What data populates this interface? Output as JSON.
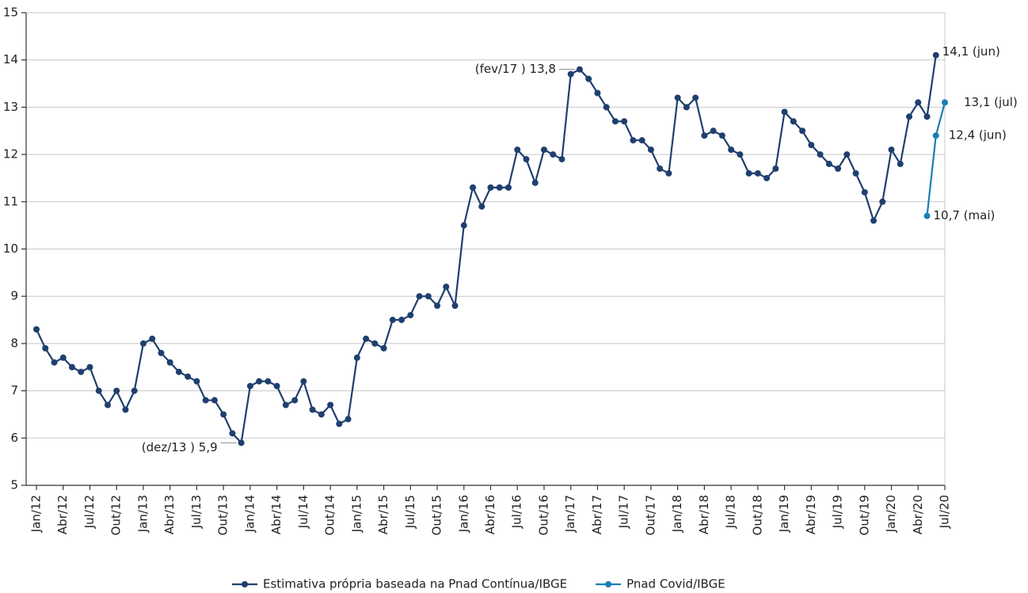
{
  "chart_data": {
    "type": "line",
    "categories": [
      "Jan/12",
      null,
      null,
      "Abr/12",
      null,
      null,
      "Jul/12",
      null,
      null,
      "Out/12",
      null,
      null,
      "Jan/13",
      null,
      null,
      "Abr/13",
      null,
      null,
      "Jul/13",
      null,
      null,
      "Out/13",
      null,
      null,
      "Jan/14",
      null,
      null,
      "Abr/14",
      null,
      null,
      "Jul/14",
      null,
      null,
      "Out/14",
      null,
      null,
      "Jan/15",
      null,
      null,
      "Abr/15",
      null,
      null,
      "Jul/15",
      null,
      null,
      "Out/15",
      null,
      null,
      "Jan/16",
      null,
      null,
      "Abr/16",
      null,
      null,
      "Jul/16",
      null,
      null,
      "Out/16",
      null,
      null,
      "Jan/17",
      null,
      null,
      "Abr/17",
      null,
      null,
      "Jul/17",
      null,
      null,
      "Out/17",
      null,
      null,
      "Jan/18",
      null,
      null,
      "Abr/18",
      null,
      null,
      "Jul/18",
      null,
      null,
      "Out/18",
      null,
      null,
      "Jan/19",
      null,
      null,
      "Abr/19",
      null,
      null,
      "Jul/19",
      null,
      null,
      "Out/19",
      null,
      null,
      "Jan/20",
      null,
      null,
      "Abr/20",
      null,
      null,
      "Jul/20"
    ],
    "series": [
      {
        "name": "Estimativa própria baseada na Pnad Contínua/IBGE",
        "color": "#1f3f6e",
        "values": [
          8.3,
          7.9,
          7.6,
          7.7,
          7.5,
          7.4,
          7.5,
          7.0,
          6.7,
          7.0,
          6.6,
          7.0,
          8.0,
          8.1,
          7.8,
          7.6,
          7.4,
          7.3,
          7.2,
          6.8,
          6.8,
          6.5,
          6.1,
          5.9,
          7.1,
          7.2,
          7.2,
          7.1,
          6.7,
          6.8,
          7.2,
          6.6,
          6.5,
          6.7,
          6.3,
          6.4,
          7.7,
          8.1,
          8.0,
          7.9,
          8.5,
          8.5,
          8.6,
          9.0,
          9.0,
          8.8,
          9.2,
          8.8,
          10.5,
          11.3,
          10.9,
          11.3,
          11.3,
          11.3,
          12.1,
          11.9,
          11.4,
          12.1,
          12.0,
          11.9,
          13.7,
          13.8,
          13.6,
          13.3,
          13.0,
          12.7,
          12.7,
          12.3,
          12.3,
          12.1,
          11.7,
          11.6,
          13.2,
          13.0,
          13.2,
          12.4,
          12.5,
          12.4,
          12.1,
          12.0,
          11.6,
          11.6,
          11.5,
          11.7,
          12.9,
          12.7,
          12.5,
          12.2,
          12.0,
          11.8,
          11.7,
          12.0,
          11.6,
          11.2,
          10.6,
          11.0,
          12.1,
          11.8,
          12.8,
          13.1,
          12.8,
          14.1,
          null
        ],
        "value_labels": [
          null,
          null,
          null,
          null,
          null,
          null,
          null,
          null,
          null,
          null,
          null,
          null,
          null,
          null,
          null,
          null,
          null,
          null,
          null,
          null,
          null,
          null,
          null,
          "(dez/13 ) 5,9",
          null,
          null,
          null,
          null,
          null,
          null,
          null,
          null,
          null,
          null,
          null,
          null,
          null,
          null,
          null,
          null,
          null,
          null,
          null,
          null,
          null,
          null,
          null,
          null,
          null,
          null,
          null,
          null,
          null,
          null,
          null,
          null,
          null,
          null,
          null,
          null,
          null,
          "(fev/17 ) 13,8",
          null,
          null,
          null,
          null,
          null,
          null,
          null,
          null,
          null,
          null,
          null,
          null,
          null,
          null,
          null,
          null,
          null,
          null,
          null,
          null,
          null,
          null,
          null,
          null,
          null,
          null,
          null,
          null,
          null,
          null,
          null,
          null,
          null,
          null,
          null,
          null,
          null,
          null,
          null,
          "14,1 (jun)",
          null
        ]
      },
      {
        "name": "Pnad Covid/IBGE",
        "color": "#1a7fb5",
        "values": [
          null,
          null,
          null,
          null,
          null,
          null,
          null,
          null,
          null,
          null,
          null,
          null,
          null,
          null,
          null,
          null,
          null,
          null,
          null,
          null,
          null,
          null,
          null,
          null,
          null,
          null,
          null,
          null,
          null,
          null,
          null,
          null,
          null,
          null,
          null,
          null,
          null,
          null,
          null,
          null,
          null,
          null,
          null,
          null,
          null,
          null,
          null,
          null,
          null,
          null,
          null,
          null,
          null,
          null,
          null,
          null,
          null,
          null,
          null,
          null,
          null,
          null,
          null,
          null,
          null,
          null,
          null,
          null,
          null,
          null,
          null,
          null,
          null,
          null,
          null,
          null,
          null,
          null,
          null,
          null,
          null,
          null,
          null,
          null,
          null,
          null,
          null,
          null,
          null,
          null,
          null,
          null,
          null,
          null,
          null,
          null,
          null,
          null,
          null,
          null,
          10.7,
          12.4,
          13.1
        ],
        "value_labels": [
          null,
          null,
          null,
          null,
          null,
          null,
          null,
          null,
          null,
          null,
          null,
          null,
          null,
          null,
          null,
          null,
          null,
          null,
          null,
          null,
          null,
          null,
          null,
          null,
          null,
          null,
          null,
          null,
          null,
          null,
          null,
          null,
          null,
          null,
          null,
          null,
          null,
          null,
          null,
          null,
          null,
          null,
          null,
          null,
          null,
          null,
          null,
          null,
          null,
          null,
          null,
          null,
          null,
          null,
          null,
          null,
          null,
          null,
          null,
          null,
          null,
          null,
          null,
          null,
          null,
          null,
          null,
          null,
          null,
          null,
          null,
          null,
          null,
          null,
          null,
          null,
          null,
          null,
          null,
          null,
          null,
          null,
          null,
          null,
          null,
          null,
          null,
          null,
          null,
          null,
          null,
          null,
          null,
          null,
          null,
          null,
          null,
          null,
          null,
          null,
          "10,7 (mai)",
          "12,4 (jun)",
          "13,1 (jul)"
        ]
      }
    ],
    "ylim": [
      5,
      15
    ],
    "yticks": [
      5,
      6,
      7,
      8,
      9,
      10,
      11,
      12,
      13,
      14,
      15
    ],
    "grid": true,
    "legend": "bottom"
  }
}
